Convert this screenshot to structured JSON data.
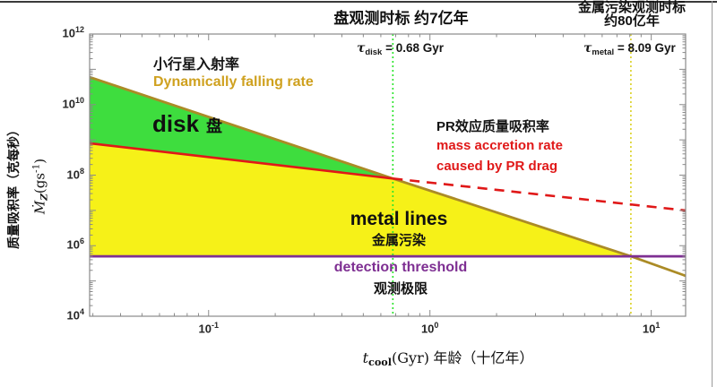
{
  "figure": {
    "top_annotations": {
      "disk_timescale_title": "盘观测时标 约7亿年",
      "tau_disk": {
        "symbol": "τ",
        "sub": "disk",
        "value": " = 0.68 Gyr"
      },
      "metal_timescale_title_line1": "金属污染观测时标",
      "metal_timescale_title_line2": "约80亿年",
      "tau_metal": {
        "symbol": "τ",
        "sub": "metal",
        "value": " = 8.09 Gyr"
      }
    },
    "annotations": {
      "infall_cn": "小行星入射率",
      "infall_en": "Dynamically falling rate",
      "disk_en": "disk",
      "disk_cn": "盘",
      "pr_cn": "PR效应质量吸积率",
      "pr_en_line1": "mass accretion rate",
      "pr_en_line2": "caused by PR drag",
      "metal_en": "metal lines",
      "metal_cn": "金属污染",
      "threshold_en": "detection threshold",
      "threshold_cn": "观测极限"
    },
    "axis_labels": {
      "x_math_t": "t",
      "x_sub": "cool",
      "x_unit": "(Gyr)",
      "x_cn": " 年龄（十亿年）",
      "y_cn": "质量吸积率（克每秒）",
      "y_math_M": "Ṁ",
      "y_sub": "Z",
      "y_open": "(gs",
      "y_sup": "-1",
      "y_close": ")"
    }
  },
  "chart_data": {
    "type": "line",
    "xscale": "log",
    "yscale": "log",
    "xlim": [
      0.029,
      14.3
    ],
    "ylim": [
      10000,
      1000000000000
    ],
    "xlabel": "t_cool (Gyr) 年龄（十亿年）",
    "ylabel": "质量吸积率（克每秒） Mdot_Z (g s^-1)",
    "grid": false,
    "legend": "none",
    "background": "#ffffff",
    "frame_color": "#8a8a8a",
    "xticks": [
      {
        "value": 0.1,
        "base": "10",
        "exp": "-1"
      },
      {
        "value": 1,
        "base": "10",
        "exp": "0"
      },
      {
        "value": 10,
        "base": "10",
        "exp": "1"
      }
    ],
    "yticks": [
      {
        "value": 10000,
        "base": "10",
        "exp": "4"
      },
      {
        "value": 1000000,
        "base": "10",
        "exp": "6"
      },
      {
        "value": 100000000,
        "base": "10",
        "exp": "8"
      },
      {
        "value": 10000000000,
        "base": "10",
        "exp": "10"
      },
      {
        "value": 1000000000000,
        "base": "10",
        "exp": "12"
      }
    ],
    "series": [
      {
        "name": "dynamical-falling-rate-line",
        "label_en": "Dynamically falling rate",
        "label_cn": "小行星入射率",
        "color": "#ab8b26",
        "style": "solid",
        "width": 2.8,
        "points": [
          [
            0.029,
            60000000000
          ],
          [
            0.68,
            80000000
          ],
          [
            8.09,
            500000
          ],
          [
            14.3,
            140000
          ]
        ]
      },
      {
        "name": "pr-drag-accretion-solid-line",
        "label_en": "mass accretion rate caused by PR drag",
        "label_cn": "PR效应质量吸积率",
        "color": "#e01818",
        "style": "solid",
        "width": 2.6,
        "points": [
          [
            0.029,
            800000000
          ],
          [
            0.68,
            80000000
          ]
        ]
      },
      {
        "name": "pr-drag-accretion-dashed-line",
        "label_en": "mass accretion rate caused by PR drag (extrapolated)",
        "color": "#e01818",
        "style": "dashed",
        "width": 2.6,
        "points": [
          [
            0.68,
            80000000
          ],
          [
            14.3,
            10000000
          ]
        ]
      },
      {
        "name": "detection-threshold-line",
        "label_en": "detection threshold",
        "label_cn": "观测极限",
        "color": "#7e2f92",
        "style": "solid",
        "width": 2.8,
        "points": [
          [
            0.029,
            500000
          ],
          [
            14.3,
            500000
          ]
        ]
      }
    ],
    "regions": [
      {
        "name": "disk-region",
        "label_en": "disk",
        "label_cn": "盘",
        "color": "#3edd3e",
        "polygon": [
          [
            0.029,
            60000000000
          ],
          [
            0.68,
            80000000
          ],
          [
            0.029,
            800000000
          ]
        ]
      },
      {
        "name": "metal-lines-region",
        "label_en": "metal lines",
        "label_cn": "金属污染",
        "color": "#f6f118",
        "polygon": [
          [
            0.029,
            800000000
          ],
          [
            0.68,
            80000000
          ],
          [
            8.09,
            500000
          ],
          [
            0.029,
            500000
          ]
        ]
      }
    ],
    "vlines": [
      {
        "name": "tau-disk-vline",
        "x": 0.68,
        "color": "#2ee52e",
        "label": "τ_disk = 0.68 Gyr"
      },
      {
        "name": "tau-metal-vline",
        "x": 8.09,
        "color": "#ddd32e",
        "label": "τ_metal = 8.09 Gyr"
      }
    ]
  }
}
